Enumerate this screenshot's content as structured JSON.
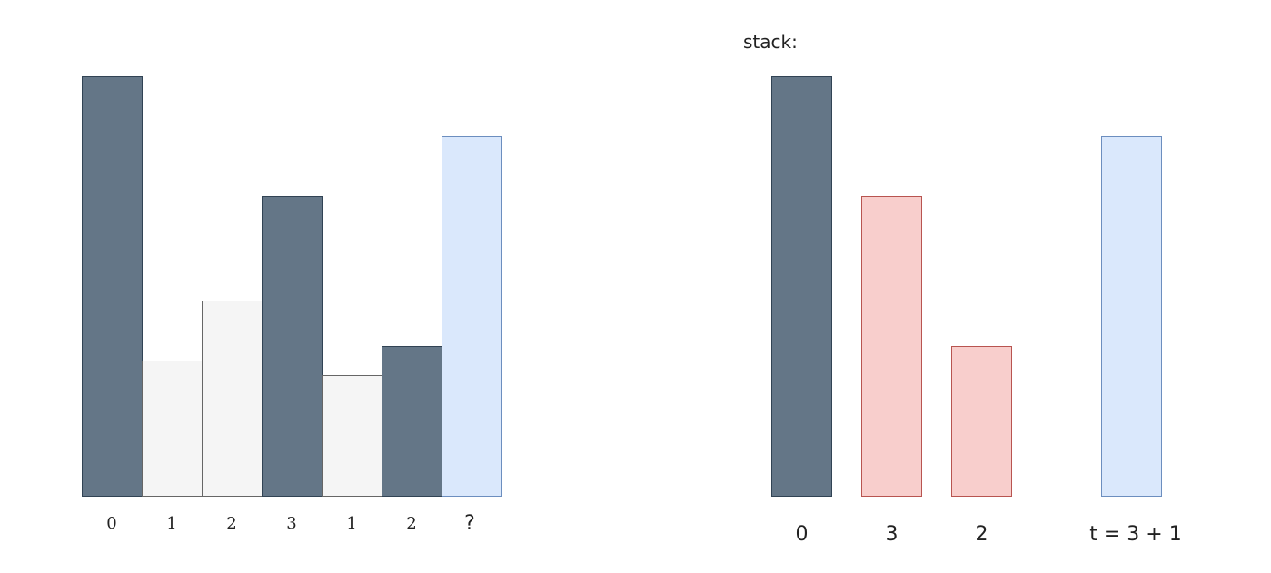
{
  "left_panel": {
    "labels": [
      "0",
      "1",
      "2",
      "3",
      "1",
      "2",
      "?"
    ],
    "relative_heights": [
      7,
      2.25,
      3.25,
      5,
      2,
      2.5,
      6
    ],
    "styles": [
      "dark",
      "light",
      "light",
      "dark",
      "light",
      "dark",
      "blue"
    ]
  },
  "right_panel": {
    "title": "stack:",
    "labels": [
      "0",
      "3",
      "2",
      "t = 3 + 1"
    ],
    "relative_heights": [
      7,
      5,
      2.5,
      6
    ],
    "styles": [
      "dark",
      "red",
      "red",
      "blue"
    ]
  },
  "colors": {
    "dark_fill": "#647687",
    "dark_stroke": "#314354",
    "light_fill": "#f5f5f5",
    "light_stroke": "#666666",
    "blue_fill": "#dae8fc",
    "blue_stroke": "#6c8ebf",
    "red_fill": "#f8cecc",
    "red_stroke": "#b85450"
  }
}
